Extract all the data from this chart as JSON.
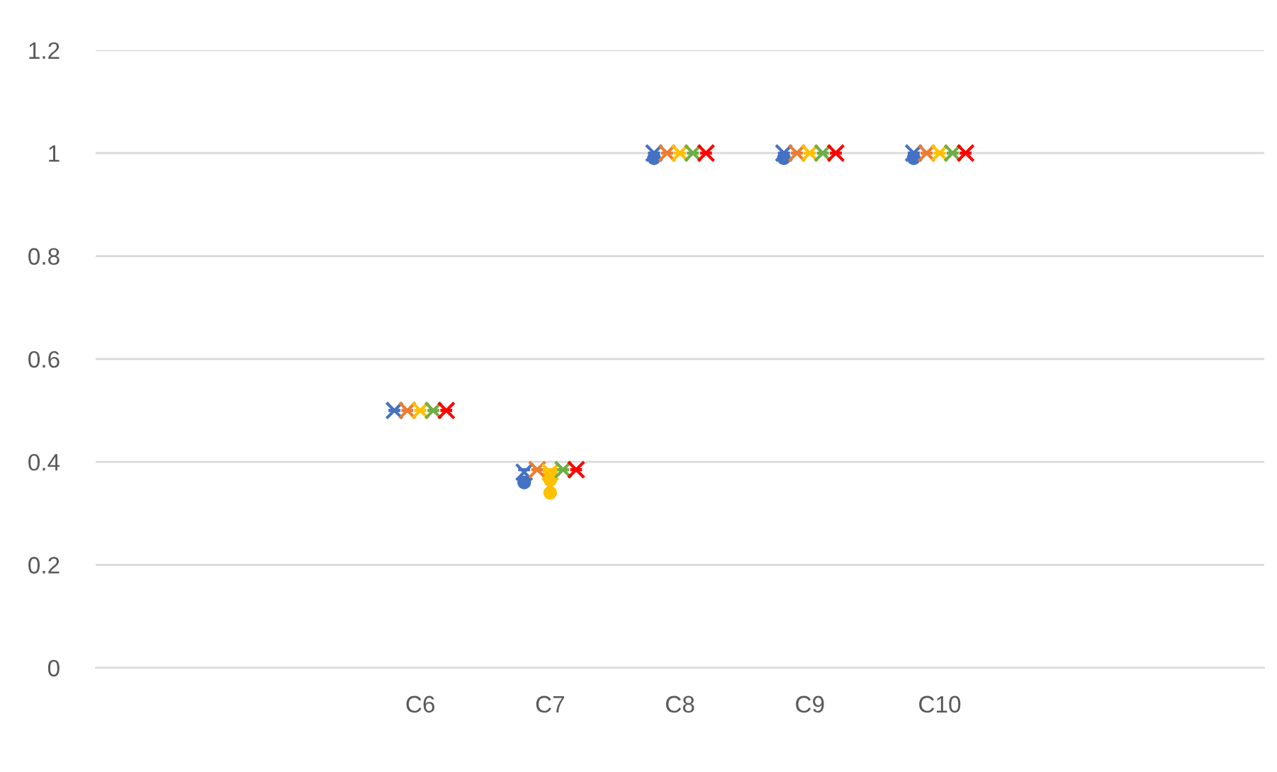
{
  "chart_data": {
    "type": "box",
    "categories": [
      null,
      null,
      "C6",
      "C7",
      "C8",
      "C9",
      "C10",
      null,
      null
    ],
    "series": [
      {
        "color": "#4472c4",
        "boxes": [
          null,
          null,
          {
            "low": 0.5,
            "q1": 0.5,
            "median": 0.5,
            "q3": 0.5,
            "high": 0.5,
            "mean": 0.5
          },
          {
            "low": 0.385,
            "q1": 0.385,
            "median": 0.385,
            "q3": 0.385,
            "high": 0.385,
            "mean": 0.38,
            "outliers": [
              0.36
            ]
          },
          {
            "low": 1,
            "q1": 1,
            "median": 1,
            "q3": 1,
            "high": 1,
            "mean": 1,
            "outliers": [
              0.99
            ]
          },
          {
            "low": 1,
            "q1": 1,
            "median": 1,
            "q3": 1,
            "high": 1,
            "mean": 1,
            "outliers": [
              0.99
            ]
          },
          {
            "low": 1,
            "q1": 1,
            "median": 1,
            "q3": 1,
            "high": 1,
            "mean": 1,
            "outliers": [
              0.99
            ]
          },
          null,
          null
        ]
      },
      {
        "color": "#ed7d31",
        "boxes": [
          null,
          null,
          {
            "low": 0.5,
            "q1": 0.5,
            "median": 0.5,
            "q3": 0.5,
            "high": 0.5,
            "mean": 0.5
          },
          {
            "low": 0.385,
            "q1": 0.385,
            "median": 0.385,
            "q3": 0.385,
            "high": 0.385,
            "mean": 0.385
          },
          {
            "low": 1,
            "q1": 1,
            "median": 1,
            "q3": 1,
            "high": 1,
            "mean": 1
          },
          {
            "low": 1,
            "q1": 1,
            "median": 1,
            "q3": 1,
            "high": 1,
            "mean": 1
          },
          {
            "low": 1,
            "q1": 1,
            "median": 1,
            "q3": 1,
            "high": 1,
            "mean": 1
          },
          null,
          null
        ]
      },
      {
        "color": "#ffc000",
        "boxes": [
          null,
          null,
          {
            "low": 0.5,
            "q1": 0.5,
            "median": 0.5,
            "q3": 0.5,
            "high": 0.5,
            "mean": 0.5
          },
          {
            "low": 0.375,
            "q1": 0.375,
            "median": 0.385,
            "q3": 0.385,
            "high": 0.385,
            "mean": 0.38,
            "outliers": [
              0.365,
              0.34
            ]
          },
          {
            "low": 1,
            "q1": 1,
            "median": 1,
            "q3": 1,
            "high": 1,
            "mean": 1
          },
          {
            "low": 1,
            "q1": 1,
            "median": 1,
            "q3": 1,
            "high": 1,
            "mean": 1
          },
          {
            "low": 1,
            "q1": 1,
            "median": 1,
            "q3": 1,
            "high": 1,
            "mean": 1
          },
          null,
          null
        ]
      },
      {
        "color": "#70ad47",
        "boxes": [
          null,
          null,
          {
            "low": 0.5,
            "q1": 0.5,
            "median": 0.5,
            "q3": 0.5,
            "high": 0.5,
            "mean": 0.5
          },
          {
            "low": 0.385,
            "q1": 0.385,
            "median": 0.385,
            "q3": 0.385,
            "high": 0.385,
            "mean": 0.385
          },
          {
            "low": 1,
            "q1": 1,
            "median": 1,
            "q3": 1,
            "high": 1,
            "mean": 1
          },
          {
            "low": 1,
            "q1": 1,
            "median": 1,
            "q3": 1,
            "high": 1,
            "mean": 1
          },
          {
            "low": 1,
            "q1": 1,
            "median": 1,
            "q3": 1,
            "high": 1,
            "mean": 1
          },
          null,
          null
        ]
      },
      {
        "color": "#ff0000",
        "boxes": [
          null,
          null,
          {
            "low": 0.5,
            "q1": 0.5,
            "median": 0.5,
            "q3": 0.5,
            "high": 0.5,
            "mean": 0.5
          },
          {
            "low": 0.385,
            "q1": 0.385,
            "median": 0.385,
            "q3": 0.385,
            "high": 0.385,
            "mean": 0.385
          },
          {
            "low": 1,
            "q1": 1,
            "median": 1,
            "q3": 1,
            "high": 1,
            "mean": 1
          },
          {
            "low": 1,
            "q1": 1,
            "median": 1,
            "q3": 1,
            "high": 1,
            "mean": 1
          },
          {
            "low": 1,
            "q1": 1,
            "median": 1,
            "q3": 1,
            "high": 1,
            "mean": 1
          },
          null,
          null
        ]
      }
    ],
    "ylim": [
      0,
      1.2
    ],
    "yticks": [
      0,
      0.2,
      0.4,
      0.6,
      0.8,
      1,
      1.2
    ],
    "grid": "y",
    "legend": false
  }
}
